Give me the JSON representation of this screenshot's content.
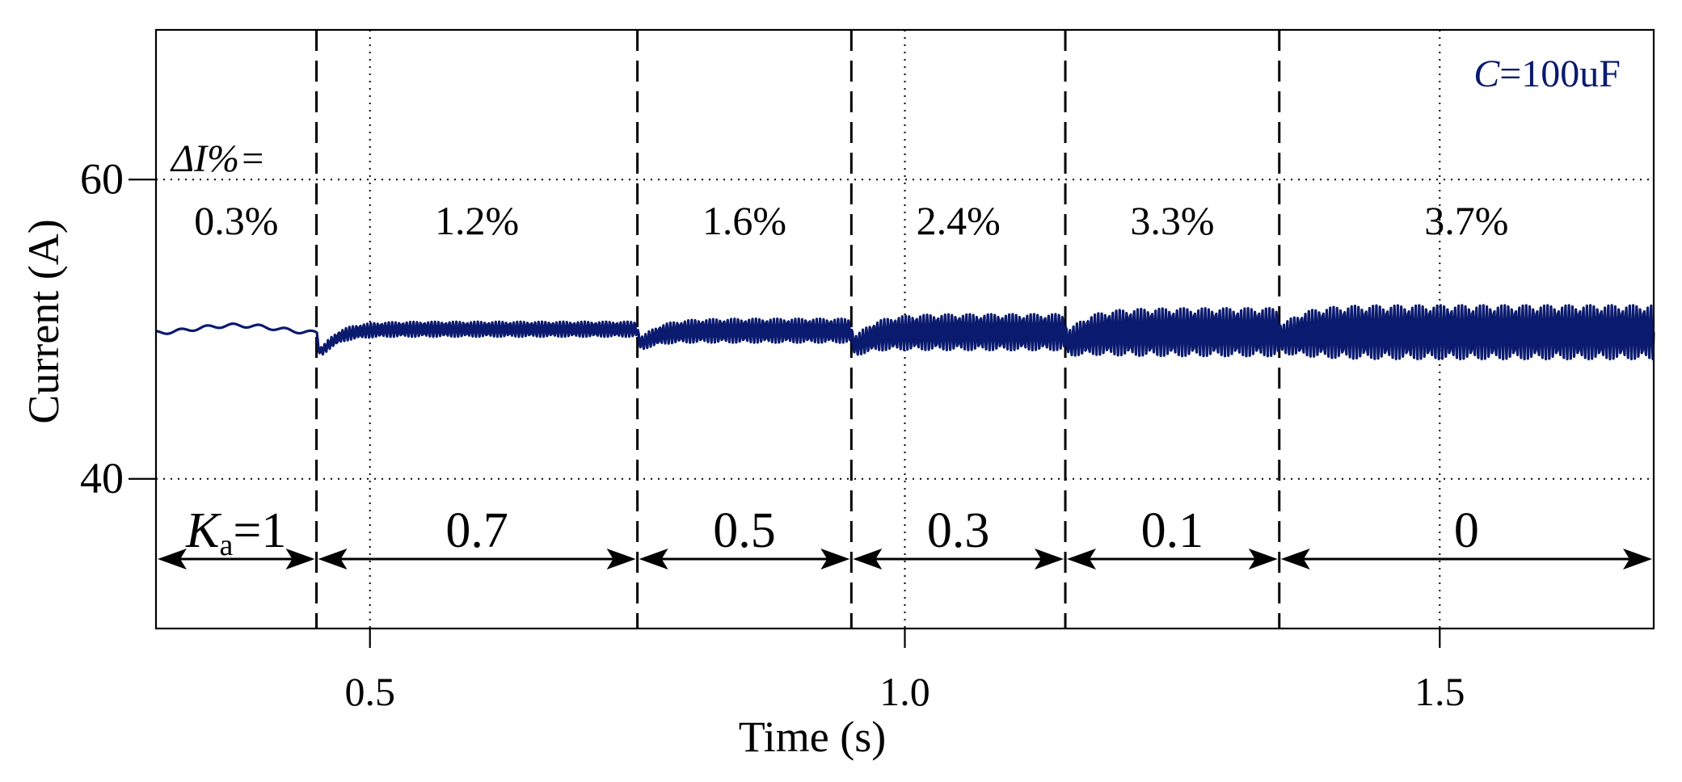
{
  "chart_data": {
    "type": "line",
    "xlabel": "Time (s)",
    "ylabel": "Current (A)",
    "xlim": [
      0.3,
      1.7
    ],
    "ylim": [
      30,
      70
    ],
    "x_ticks": [
      "0.5",
      "1.0",
      "1.5"
    ],
    "x_tick_values": [
      0.5,
      1.0,
      1.5
    ],
    "y_ticks": [
      "40",
      "60"
    ],
    "y_tick_values": [
      40,
      60
    ],
    "grid": "dotted at tick values",
    "legend": "none",
    "series_color": "#0a1a6e",
    "annotation_capacitance": {
      "italic": "C",
      "rest": "=100uF"
    },
    "delta_label": "ΔI%=",
    "segment_boundaries": [
      0.45,
      0.75,
      0.95,
      1.15,
      1.35
    ],
    "segments": [
      {
        "x_start": 0.3,
        "x_end": 0.45,
        "ka": "1",
        "delta_i": "0.3%",
        "mean": 50.0,
        "ripple": 0.25,
        "dip": 0.0
      },
      {
        "x_start": 0.45,
        "x_end": 0.75,
        "ka": "0.7",
        "delta_i": "1.2%",
        "mean": 50.0,
        "ripple": 0.5,
        "dip": 2.2
      },
      {
        "x_start": 0.75,
        "x_end": 0.95,
        "ka": "0.5",
        "delta_i": "1.6%",
        "mean": 49.9,
        "ripple": 0.8,
        "dip": 1.2
      },
      {
        "x_start": 0.95,
        "x_end": 1.15,
        "ka": "0.3",
        "delta_i": "2.4%",
        "mean": 49.8,
        "ripple": 1.2,
        "dip": 1.3
      },
      {
        "x_start": 1.15,
        "x_end": 1.35,
        "ka": "0.1",
        "delta_i": "3.3%",
        "mean": 49.8,
        "ripple": 1.6,
        "dip": 1.0
      },
      {
        "x_start": 1.35,
        "x_end": 1.7,
        "ka": "0",
        "delta_i": "3.7%",
        "mean": 49.8,
        "ripple": 1.8,
        "dip": 0.6
      }
    ],
    "ka_label_prefix": {
      "main": "K",
      "sub": "a",
      "eq": "="
    }
  }
}
